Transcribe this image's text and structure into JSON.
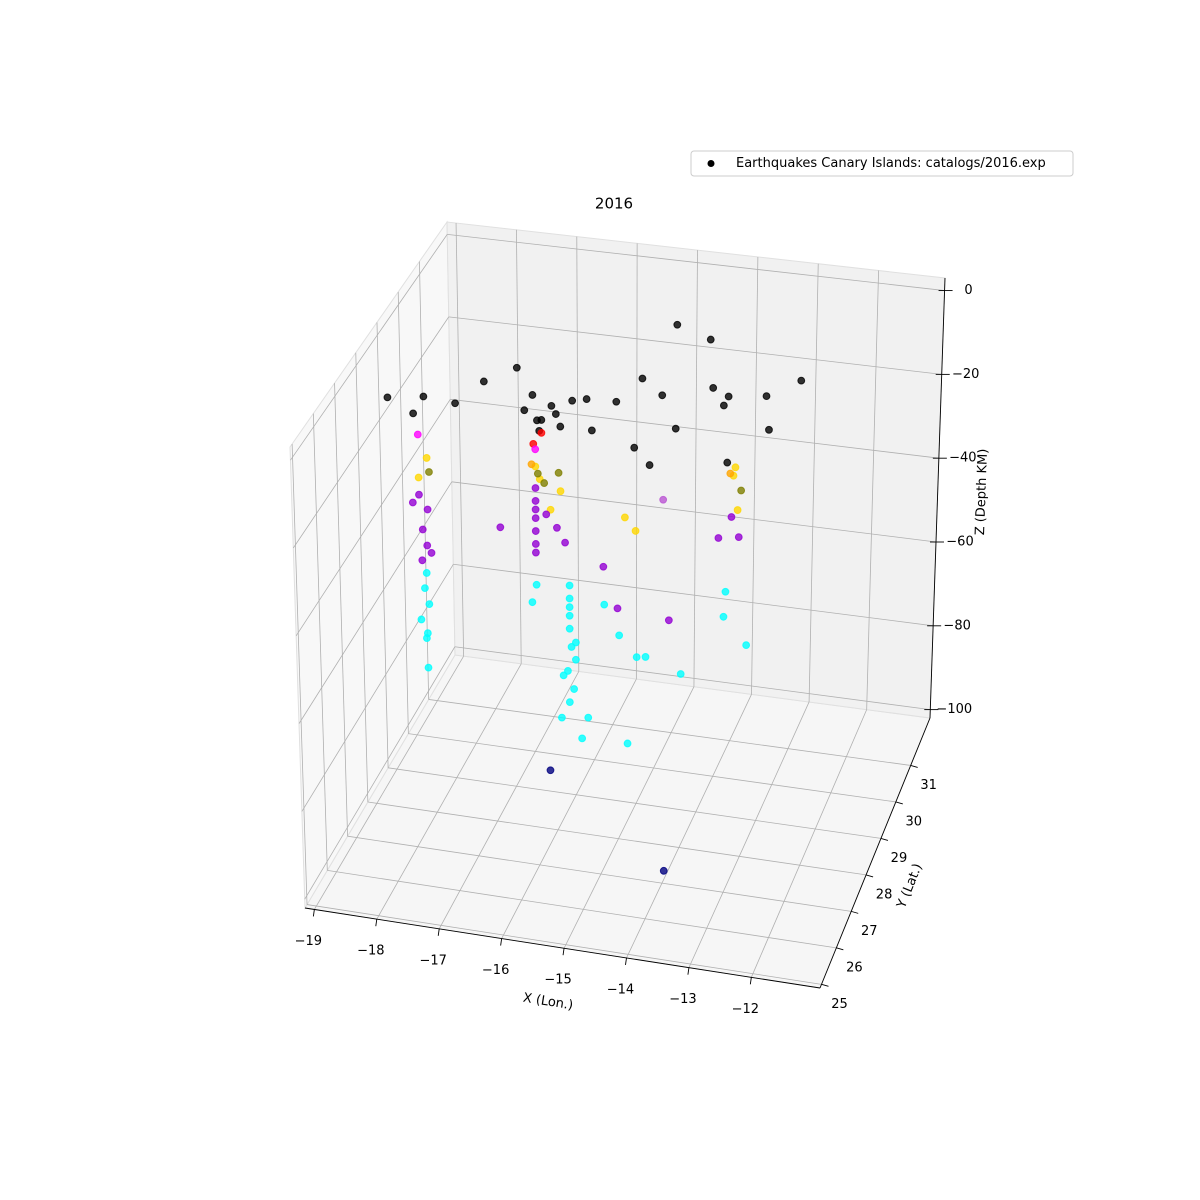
{
  "chart_data": {
    "type": "scatter3d",
    "title": "2016",
    "x_label": "X (Lon.)",
    "y_label": "Y (Lat.)",
    "z_label": "Z (Depth KM)",
    "xlim": [
      -19.15,
      -10.9
    ],
    "ylim": [
      24.9,
      32.3
    ],
    "zlim": [
      -102,
      3
    ],
    "xticks": [
      {
        "value": -19,
        "label": "−19"
      },
      {
        "value": -18,
        "label": "−18"
      },
      {
        "value": -17,
        "label": "−17"
      },
      {
        "value": -16,
        "label": "−16"
      },
      {
        "value": -15,
        "label": "−15"
      },
      {
        "value": -14,
        "label": "−14"
      },
      {
        "value": -13,
        "label": "−13"
      },
      {
        "value": -12,
        "label": "−12"
      }
    ],
    "yticks": [
      25,
      26,
      27,
      28,
      29,
      30,
      31
    ],
    "zticks": [
      0,
      {
        "value": -20,
        "label": "−20"
      },
      {
        "value": -40,
        "label": "−40"
      },
      {
        "value": -60,
        "label": "−60"
      },
      {
        "value": -80,
        "label": "−80"
      },
      {
        "value": -100,
        "label": "−100"
      }
    ],
    "grid": true,
    "legend": "upper right",
    "series": [
      {
        "name": "Earthquakes Canary Islands: catalogs/2016.exp",
        "color": "#000000",
        "x": [
          -18.6,
          -18.2,
          -18.0,
          -17.6,
          -17.3,
          -16.9,
          -16.6,
          -16.5,
          -16.4,
          -16.3,
          -16.2,
          -16.1,
          -16.0,
          -15.9,
          -15.7,
          -15.5,
          -15.2,
          -14.9,
          -14.8,
          -14.5,
          -14.2,
          -13.8,
          -13.6,
          -13.5,
          -13.0,
          -12.8,
          -12.5,
          -14.8,
          -14.2,
          -13.3,
          -14.5,
          -16.35,
          -16.3,
          -16.4,
          -16.4,
          -18.1,
          -18.0,
          -18.1,
          -16.4,
          -16.3,
          -16.0,
          -16.1,
          -15.0,
          -14.8,
          -13.4,
          -13.3,
          -13.2,
          -16.4,
          -13.3,
          -16.3,
          -16.0,
          -18.0,
          -13.2,
          -16.2,
          -18.1,
          -18.0,
          -18.05,
          -18.0,
          -18.1,
          -18.2,
          -17.95,
          -16.4,
          -16.4,
          -16.4,
          -16.4,
          -16.4,
          -16.4,
          -16.4,
          -16.2,
          -16.0,
          -15.9,
          -17.0,
          -15.2,
          -13.4,
          -13.2,
          -13.5,
          -15.0,
          -14.2,
          -14.5,
          -18.0,
          -18.05,
          -18.0,
          -18.1,
          -18.0,
          -18.05,
          -18.0,
          -15.8,
          -15.8,
          -15.8,
          -15.8,
          -15.8,
          -15.7,
          -15.8,
          -15.7,
          -15.8,
          -15.9,
          -15.7,
          -15.8,
          -15.9,
          -15.6,
          -15.3,
          -15.0,
          -14.6,
          -14.8,
          -16.3,
          -16.4,
          -13.4,
          -13.4,
          -14.0,
          -15.5,
          -14.8,
          -13.0,
          -16.0,
          -14.0
        ],
        "y": [
          27.8,
          27.8,
          27.7,
          28.0,
          28.5,
          28.9,
          28.3,
          28.4,
          28.3,
          28.2,
          28.4,
          28.3,
          28.2,
          28.5,
          28.6,
          28.2,
          28.5,
          28.9,
          28.1,
          28.6,
          28.3,
          29.0,
          28.9,
          28.8,
          29.2,
          28.6,
          29.4,
          30.5,
          30.3,
          28.0,
          27.9,
          28.25,
          28.2,
          28.1,
          28.2,
          27.7,
          27.8,
          27.7,
          28.2,
          28.1,
          28.2,
          28.0,
          28.3,
          28.2,
          28.9,
          28.4,
          28.3,
          28.0,
          28.2,
          28.0,
          28.1,
          27.9,
          28.5,
          28.0,
          27.7,
          27.8,
          27.7,
          27.75,
          27.8,
          27.7,
          27.8,
          28.2,
          28.2,
          28.2,
          28.2,
          28.2,
          28.2,
          28.2,
          28.1,
          28.0,
          28.1,
          28.3,
          27.8,
          28.7,
          28.4,
          28.3,
          27.9,
          28.0,
          28.7,
          27.7,
          27.75,
          27.8,
          27.7,
          27.7,
          27.8,
          27.7,
          28.0,
          28.0,
          28.0,
          28.0,
          28.0,
          28.0,
          28.1,
          28.0,
          27.9,
          28.0,
          27.9,
          28.0,
          27.9,
          28.0,
          28.2,
          28.0,
          28.1,
          28.3,
          27.9,
          28.0,
          28.4,
          28.3,
          28.0,
          28.0,
          27.8,
          28.2,
          27.6,
          27.1
        ],
        "z": [
          -5,
          -8,
          -3,
          -6,
          -4,
          -3,
          -8,
          -5,
          -10,
          -9,
          -7,
          -8,
          -10,
          -6,
          -6,
          -10,
          -5,
          -2,
          -12,
          -3,
          -8,
          -3,
          -6,
          -3,
          -5,
          -8,
          -2,
          -1,
          -2,
          -12,
          -14,
          -12,
          -12,
          -14,
          -16,
          -12,
          -18,
          -22,
          -20,
          -22,
          -25,
          -28,
          -30,
          -32,
          -20,
          -18,
          -25,
          -18,
          -16,
          -20,
          -20,
          -22,
          -22,
          -22,
          -26,
          -30,
          -34,
          -38,
          -42,
          -28,
          -40,
          -25,
          -28,
          -30,
          -32,
          -35,
          -38,
          -40,
          -30,
          -32,
          -36,
          -36,
          -38,
          -30,
          -32,
          -32,
          -48,
          -50,
          -28,
          -44,
          -48,
          -52,
          -55,
          -58,
          -60,
          -66,
          -45,
          -48,
          -50,
          -52,
          -55,
          -58,
          -60,
          -62,
          -64,
          -66,
          -68,
          -72,
          -75,
          -80,
          -50,
          -55,
          -60,
          -62,
          -45,
          -50,
          -45,
          -50,
          -62,
          -75,
          -78,
          -55,
          -85,
          -100
        ],
        "colors": [
          "#000000",
          "#000000",
          "#000000",
          "#000000",
          "#000000",
          "#000000",
          "#000000",
          "#000000",
          "#000000",
          "#000000",
          "#000000",
          "#000000",
          "#000000",
          "#000000",
          "#000000",
          "#000000",
          "#000000",
          "#000000",
          "#000000",
          "#000000",
          "#000000",
          "#000000",
          "#000000",
          "#000000",
          "#000000",
          "#000000",
          "#000000",
          "#000000",
          "#000000",
          "#000000",
          "#000000",
          "#000000",
          "#ff0000",
          "#ff0000",
          "#ff00ff",
          "#ff00ff",
          "#ffd700",
          "#ffd700",
          "#ffd700",
          "#ffd700",
          "#ffd700",
          "#ffd700",
          "#ffd700",
          "#ffd700",
          "#ffd700",
          "#ffd700",
          "#ffd700",
          "#ffa500",
          "#ffa500",
          "#808000",
          "#808000",
          "#808000",
          "#808000",
          "#808000",
          "#9400d3",
          "#9400d3",
          "#9400d3",
          "#9400d3",
          "#9400d3",
          "#9400d3",
          "#9400d3",
          "#9400d3",
          "#9400d3",
          "#9400d3",
          "#9400d3",
          "#9400d3",
          "#9400d3",
          "#9400d3",
          "#9400d3",
          "#9400d3",
          "#9400d3",
          "#9400d3",
          "#9400d3",
          "#9400d3",
          "#9400d3",
          "#9400d3",
          "#9400d3",
          "#9400d3",
          "#ba55d3",
          "#00ffff",
          "#00ffff",
          "#00ffff",
          "#00ffff",
          "#00ffff",
          "#00ffff",
          "#00ffff",
          "#00ffff",
          "#00ffff",
          "#00ffff",
          "#00ffff",
          "#00ffff",
          "#00ffff",
          "#00ffff",
          "#00ffff",
          "#00ffff",
          "#00ffff",
          "#00ffff",
          "#00ffff",
          "#00ffff",
          "#00ffff",
          "#00ffff",
          "#00ffff",
          "#00ffff",
          "#00ffff",
          "#00ffff",
          "#00ffff",
          "#00ffff",
          "#00ffff",
          "#00ffff",
          "#00ffff",
          "#00ffff",
          "#00ffff",
          "#000080",
          "#000080"
        ]
      }
    ]
  }
}
